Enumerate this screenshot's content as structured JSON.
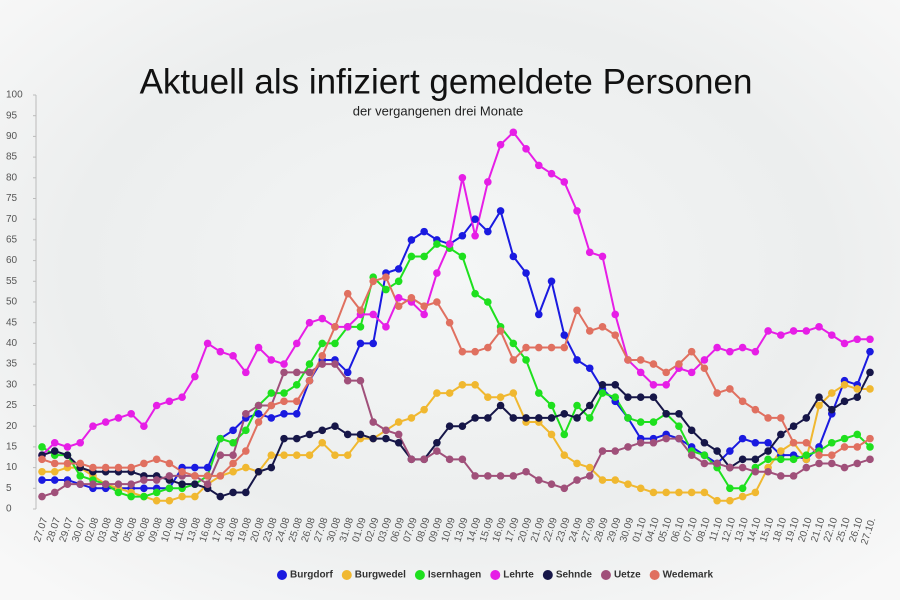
{
  "chart_data": {
    "type": "line",
    "title": "Aktuell als infiziert gemeldete Personen",
    "subtitle": "der vergangenen drei Monate",
    "categories": [
      "27.07",
      "28.07",
      "29.07",
      "30.07",
      "02.08",
      "03.08",
      "04.08",
      "05.08",
      "06.08",
      "09.08",
      "10.08",
      "11.08",
      "13.08",
      "16.08",
      "17.08",
      "18.08",
      "19.08",
      "20.08",
      "23.08",
      "24.08",
      "25.08",
      "26.08",
      "27.08",
      "30.08",
      "31.08",
      "01.09",
      "02.09",
      "03.09",
      "06.09",
      "07.09",
      "08.09",
      "09.09",
      "10.09",
      "13.09",
      "14.09",
      "15.09",
      "16.09",
      "17.09",
      "20.09",
      "21.09",
      "22.09",
      "23.09",
      "24.09",
      "27.09",
      "28.09",
      "29.09",
      "30.09",
      "01.10",
      "04.10",
      "05.10",
      "06.10",
      "07.10",
      "08.10",
      "11.10",
      "12.10",
      "13.10",
      "14.10",
      "15.10",
      "18.10",
      "19.10",
      "20.10",
      "21.10",
      "22.10",
      "25.10",
      "26.10",
      "27.10."
    ],
    "series": [
      {
        "name": "Burgdorf",
        "color": "#1a1ae0",
        "values": [
          7,
          7,
          7,
          6,
          5,
          5,
          5,
          5,
          5,
          5,
          5,
          10,
          10,
          10,
          17,
          19,
          22,
          23,
          22,
          23,
          23,
          31,
          36,
          36,
          33,
          40,
          40,
          57,
          58,
          65,
          67,
          65,
          64,
          66,
          70,
          67,
          72,
          61,
          57,
          47,
          55,
          42,
          36,
          34,
          29,
          26,
          22,
          17,
          17,
          18,
          17,
          15,
          13,
          11,
          14,
          17,
          16,
          16,
          13,
          13,
          12,
          15,
          23,
          31,
          30,
          38
        ]
      },
      {
        "name": "Burgwedel",
        "color": "#f0b830",
        "values": [
          9,
          9,
          10,
          10,
          8,
          6,
          5,
          4,
          3,
          2,
          2,
          3,
          3,
          6,
          8,
          9,
          10,
          9,
          13,
          13,
          13,
          13,
          16,
          13,
          13,
          17,
          17,
          19,
          21,
          22,
          24,
          28,
          28,
          30,
          30,
          27,
          27,
          28,
          21,
          21,
          18,
          13,
          11,
          10,
          7,
          7,
          6,
          5,
          4,
          4,
          4,
          4,
          4,
          2,
          2,
          3,
          4,
          10,
          14,
          16,
          12,
          25,
          28,
          30,
          29,
          29
        ]
      },
      {
        "name": "Isernhagen",
        "color": "#1ee01e",
        "values": [
          15,
          13,
          13,
          8,
          7,
          6,
          4,
          3,
          3,
          4,
          5,
          5,
          6,
          8,
          17,
          16,
          19,
          25,
          28,
          28,
          30,
          35,
          40,
          40,
          44,
          44,
          56,
          53,
          55,
          61,
          61,
          64,
          63,
          61,
          52,
          50,
          44,
          40,
          36,
          28,
          25,
          18,
          25,
          22,
          28,
          27,
          22,
          21,
          21,
          23,
          20,
          14,
          13,
          10,
          5,
          5,
          10,
          12,
          12,
          12,
          13,
          14,
          16,
          17,
          18,
          15
        ]
      },
      {
        "name": "Lehrte",
        "color": "#e61ee6",
        "values": [
          13,
          16,
          15,
          16,
          20,
          21,
          22,
          23,
          20,
          25,
          26,
          27,
          32,
          40,
          38,
          37,
          33,
          39,
          36,
          35,
          40,
          45,
          46,
          44,
          44,
          47,
          47,
          44,
          51,
          50,
          47,
          57,
          64,
          80,
          66,
          79,
          88,
          91,
          87,
          83,
          81,
          79,
          72,
          62,
          61,
          47,
          36,
          33,
          30,
          30,
          34,
          33,
          36,
          39,
          38,
          39,
          38,
          43,
          42,
          43,
          43,
          44,
          42,
          40,
          41,
          41
        ]
      },
      {
        "name": "Sehnde",
        "color": "#161648",
        "values": [
          13,
          14,
          13,
          10,
          9,
          9,
          9,
          9,
          8,
          8,
          7,
          6,
          6,
          5,
          3,
          4,
          4,
          9,
          10,
          17,
          17,
          18,
          19,
          20,
          18,
          18,
          17,
          17,
          16,
          12,
          12,
          16,
          20,
          20,
          22,
          22,
          25,
          22,
          22,
          22,
          22,
          23,
          22,
          25,
          30,
          30,
          27,
          27,
          27,
          23,
          23,
          19,
          16,
          14,
          10,
          12,
          12,
          14,
          18,
          20,
          22,
          27,
          24,
          26,
          27,
          33
        ]
      },
      {
        "name": "Uetze",
        "color": "#a0507a",
        "values": [
          3,
          4,
          6,
          6,
          6,
          6,
          6,
          6,
          7,
          7,
          8,
          8,
          8,
          6,
          13,
          13,
          23,
          25,
          25,
          33,
          33,
          33,
          35,
          35,
          31,
          31,
          21,
          19,
          18,
          12,
          12,
          14,
          12,
          12,
          8,
          8,
          8,
          8,
          9,
          7,
          6,
          5,
          7,
          8,
          14,
          14,
          15,
          16,
          16,
          17,
          17,
          13,
          11,
          11,
          10,
          10,
          9,
          9,
          8,
          8,
          10,
          11,
          11,
          10,
          11,
          12
        ]
      },
      {
        "name": "Wedemark",
        "color": "#e07060",
        "values": [
          12,
          11,
          11,
          11,
          10,
          10,
          10,
          10,
          11,
          12,
          11,
          9,
          8,
          8,
          8,
          11,
          14,
          21,
          25,
          26,
          26,
          31,
          37,
          44,
          52,
          48,
          55,
          56,
          49,
          51,
          49,
          50,
          45,
          38,
          38,
          39,
          43,
          36,
          39,
          39,
          39,
          39,
          48,
          43,
          44,
          42,
          36,
          36,
          35,
          33,
          35,
          38,
          34,
          28,
          29,
          26,
          24,
          22,
          22,
          16,
          16,
          13,
          13,
          15,
          15,
          17
        ]
      }
    ],
    "ylim": [
      0,
      100
    ],
    "yticks": [
      0,
      5,
      10,
      15,
      20,
      25,
      30,
      35,
      40,
      45,
      50,
      55,
      60,
      65,
      70,
      75,
      80,
      85,
      90,
      95,
      100
    ]
  }
}
